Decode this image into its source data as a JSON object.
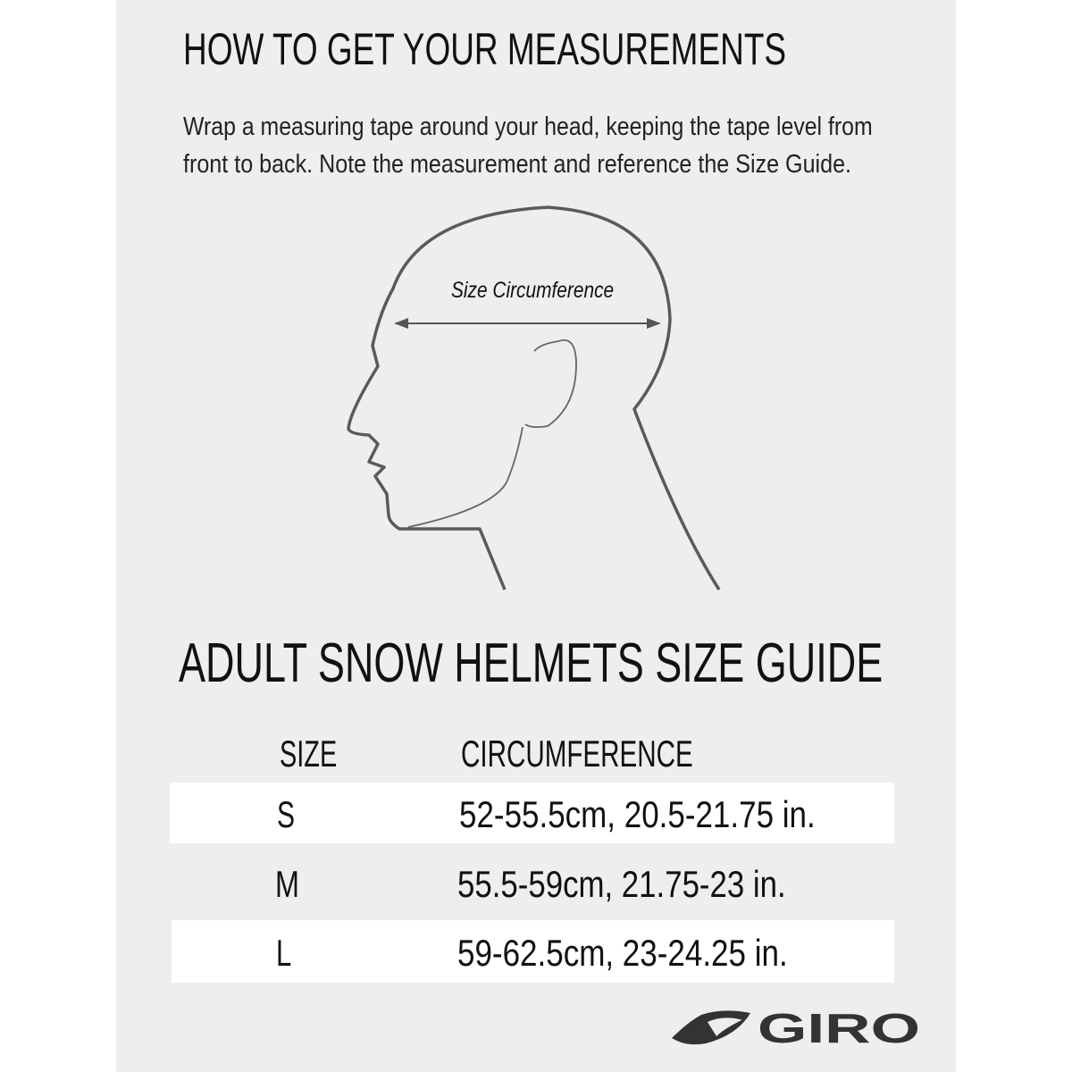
{
  "measure_section": {
    "title": "HOW TO GET YOUR MEASUREMENTS",
    "instructions_line1": "Wrap a measuring tape around your head, keeping the tape level from",
    "instructions_line2": "front to back.  Note the measurement and reference the Size Guide.",
    "diagram_label": "Size Circumference"
  },
  "size_guide": {
    "title": "ADULT SNOW HELMETS SIZE GUIDE",
    "columns": [
      "SIZE",
      "CIRCUMFERENCE"
    ],
    "rows": [
      {
        "size": "S",
        "circumference": "52-55.5cm, 20.5-21.75 in."
      },
      {
        "size": "M",
        "circumference": "55.5-59cm, 21.75-23 in."
      },
      {
        "size": "L",
        "circumference": "59-62.5cm, 23-24.25 in."
      }
    ]
  },
  "brand": {
    "name": "GIRO",
    "color": "#333333"
  },
  "colors": {
    "panel": "#eeeeee",
    "row_highlight": "#ffffff",
    "outline": "#555555"
  }
}
